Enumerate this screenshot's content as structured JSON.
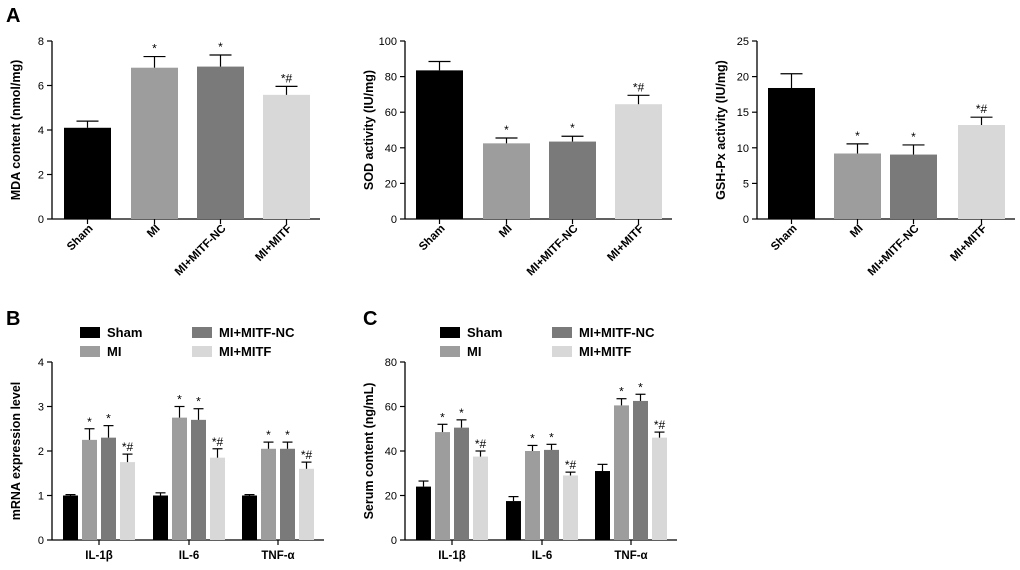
{
  "panels": {
    "a": "A",
    "b": "B",
    "c": "C"
  },
  "colors": {
    "Sham": "#000000",
    "MI": "#9d9d9d",
    "MI+MITF-NC": "#7a7a7a",
    "MI+MITF": "#d8d8d8"
  },
  "chart_data": [
    {
      "id": "a1",
      "type": "bar",
      "ylabel": "MDA content (nmol/mg)",
      "ylim": [
        0,
        8
      ],
      "yticks": [
        0,
        2,
        4,
        6,
        8
      ],
      "categories": [
        "Sham",
        "MI",
        "MI+MITF-NC",
        "MI+MITF"
      ],
      "values": [
        4.1,
        6.8,
        6.85,
        5.58
      ],
      "errors": [
        0.3,
        0.5,
        0.52,
        0.38
      ],
      "annotations": [
        "",
        "*",
        "*",
        "*#"
      ]
    },
    {
      "id": "a2",
      "type": "bar",
      "ylabel": "SOD activity (IU/mg)",
      "ylim": [
        0,
        100
      ],
      "yticks": [
        0,
        20,
        40,
        60,
        80,
        100
      ],
      "categories": [
        "Sham",
        "MI",
        "MI+MITF-NC",
        "MI+MITF"
      ],
      "values": [
        83.5,
        42.5,
        43.5,
        64.5
      ],
      "errors": [
        5,
        3,
        3,
        5
      ],
      "annotations": [
        "",
        "*",
        "*",
        "*#"
      ]
    },
    {
      "id": "a3",
      "type": "bar",
      "ylabel": "GSH-Px activity (IU/mg)",
      "ylim": [
        0,
        25
      ],
      "yticks": [
        0,
        5,
        10,
        15,
        20,
        25
      ],
      "categories": [
        "Sham",
        "MI",
        "MI+MITF-NC",
        "MI+MITF"
      ],
      "values": [
        18.4,
        9.2,
        9.05,
        13.2
      ],
      "errors": [
        2.0,
        1.35,
        1.35,
        1.1
      ],
      "annotations": [
        "",
        "*",
        "*",
        "*#"
      ]
    },
    {
      "id": "b",
      "type": "bar",
      "ylabel": "mRNA expression level",
      "ylim": [
        0,
        4
      ],
      "yticks": [
        0,
        1,
        2,
        3,
        4
      ],
      "categories": [
        "IL-1β",
        "IL-6",
        "TNF-α"
      ],
      "legend": [
        "Sham",
        "MI+MITF-NC",
        "MI",
        "MI+MITF"
      ],
      "series": [
        {
          "name": "Sham",
          "values": [
            1.0,
            1.0,
            1.0
          ],
          "errors": [
            0.02,
            0.06,
            0.02
          ],
          "annotations": [
            "",
            "",
            ""
          ]
        },
        {
          "name": "MI",
          "values": [
            2.25,
            2.75,
            2.05
          ],
          "errors": [
            0.25,
            0.25,
            0.15
          ],
          "annotations": [
            "*",
            "*",
            "*"
          ]
        },
        {
          "name": "MI+MITF-NC",
          "values": [
            2.3,
            2.7,
            2.05
          ],
          "errors": [
            0.27,
            0.25,
            0.15
          ],
          "annotations": [
            "*",
            "*",
            "*"
          ]
        },
        {
          "name": "MI+MITF",
          "values": [
            1.75,
            1.85,
            1.6
          ],
          "errors": [
            0.18,
            0.2,
            0.15
          ],
          "annotations": [
            "*#",
            "*#",
            "*#"
          ]
        }
      ]
    },
    {
      "id": "c",
      "type": "bar",
      "ylabel": "Serum content (ng/mL)",
      "ylim": [
        0,
        80
      ],
      "yticks": [
        0,
        20,
        40,
        60,
        80
      ],
      "categories": [
        "IL-1β",
        "IL-6",
        "TNF-α"
      ],
      "legend": [
        "Sham",
        "MI+MITF-NC",
        "MI",
        "MI+MITF"
      ],
      "series": [
        {
          "name": "Sham",
          "values": [
            24,
            17.5,
            31
          ],
          "errors": [
            2.5,
            2,
            3
          ],
          "annotations": [
            "",
            "",
            ""
          ]
        },
        {
          "name": "MI",
          "values": [
            48.5,
            40,
            60.5
          ],
          "errors": [
            3.5,
            2.5,
            3
          ],
          "annotations": [
            "*",
            "*",
            "*"
          ]
        },
        {
          "name": "MI+MITF-NC",
          "values": [
            50.5,
            40.5,
            62.5
          ],
          "errors": [
            3.5,
            2.5,
            3
          ],
          "annotations": [
            "*",
            "*",
            "*"
          ]
        },
        {
          "name": "MI+MITF",
          "values": [
            37.5,
            29,
            46
          ],
          "errors": [
            2.5,
            1.5,
            2.5
          ],
          "annotations": [
            "*#",
            "*#",
            "*#"
          ]
        }
      ]
    }
  ]
}
